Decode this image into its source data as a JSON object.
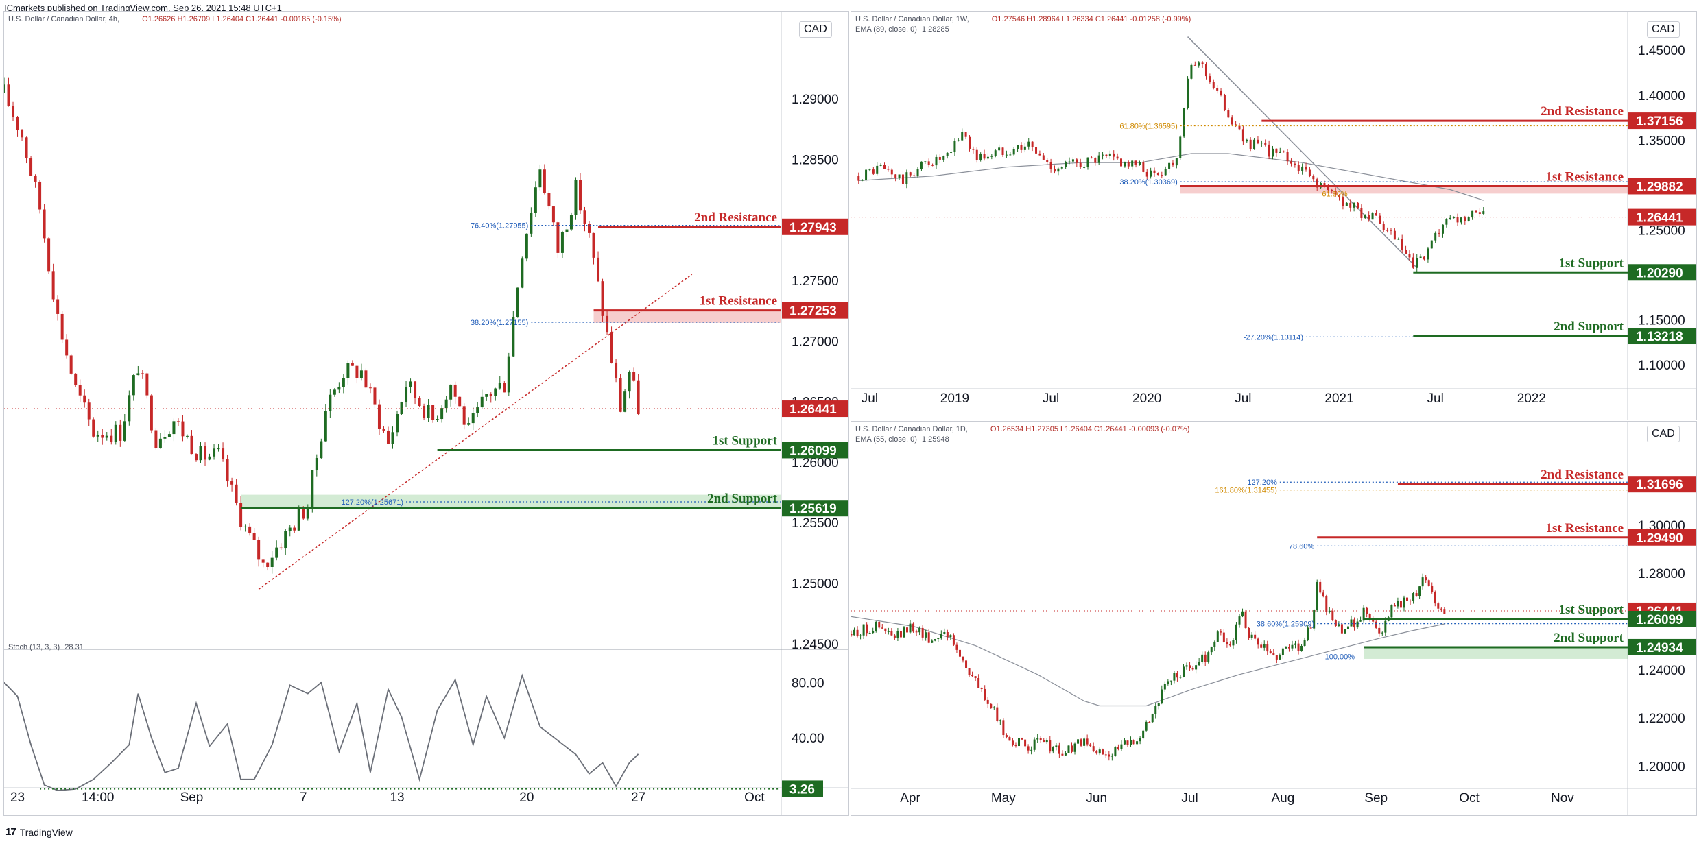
{
  "publisher_line": "ICmarkets published on TradingView.com, Sep 26, 2021 15:48 UTC+1",
  "footer": {
    "logo": "17",
    "brand": "TradingView"
  },
  "colors": {
    "red": "#c62828",
    "green": "#1e6b22",
    "blue": "#1e5bb8",
    "orange": "#d08a00",
    "gray": "#8a8f99"
  },
  "chart_data": [
    {
      "id": "h4",
      "type": "candlestick",
      "symbol": "U.S. Dollar / Canadian Dollar, 4h,",
      "ohlc": "O1.26626  H1.26709  L1.26404  C1.26441  -0.00185 (-0.15%)",
      "currency": "CAD",
      "ylim": [
        1.2455,
        1.2955
      ],
      "yticks": [
        "1.29000",
        "1.28500",
        "1.27500",
        "1.27000",
        "1.26500",
        "1.26000",
        "1.25500",
        "1.25000",
        "1.24500"
      ],
      "ytick_values": [
        1.29,
        1.285,
        1.275,
        1.27,
        1.265,
        1.26,
        1.255,
        1.25,
        1.245
      ],
      "xticks": [
        {
          "label": "23",
          "t": 3
        },
        {
          "label": "14:00",
          "t": 21
        },
        {
          "label": "Sep",
          "t": 42
        },
        {
          "label": "7",
          "t": 67
        },
        {
          "label": "13",
          "t": 88
        },
        {
          "label": "20",
          "t": 117
        },
        {
          "label": "27",
          "t": 142
        },
        {
          "label": "Oct",
          "t": 168
        }
      ],
      "xlim": [
        0,
        174
      ],
      "path": [
        [
          0,
          1.2905
        ],
        [
          4,
          1.287
        ],
        [
          8,
          1.281
        ],
        [
          12,
          1.272
        ],
        [
          16,
          1.266
        ],
        [
          20,
          1.2625
        ],
        [
          26,
          1.2625
        ],
        [
          30,
          1.268
        ],
        [
          34,
          1.262
        ],
        [
          38,
          1.2635
        ],
        [
          44,
          1.2605
        ],
        [
          48,
          1.2605
        ],
        [
          54,
          1.2545
        ],
        [
          58,
          1.2515
        ],
        [
          62,
          1.2535
        ],
        [
          68,
          1.2565
        ],
        [
          72,
          1.2645
        ],
        [
          76,
          1.2675
        ],
        [
          80,
          1.2675
        ],
        [
          86,
          1.2615
        ],
        [
          90,
          1.2665
        ],
        [
          96,
          1.2635
        ],
        [
          100,
          1.2665
        ],
        [
          104,
          1.2625
        ],
        [
          108,
          1.2655
        ],
        [
          112,
          1.2665
        ],
        [
          116,
          1.2775
        ],
        [
          120,
          1.2845
        ],
        [
          124,
          1.2775
        ],
        [
          128,
          1.2825
        ],
        [
          131,
          1.2785
        ],
        [
          134,
          1.2725
        ],
        [
          138,
          1.2645
        ],
        [
          140,
          1.2675
        ],
        [
          142,
          1.2645
        ]
      ],
      "last_price": {
        "label": "1.26441",
        "value": 1.26441
      },
      "levels": [
        {
          "label": "2nd Resistance",
          "price_label": "1.27943",
          "value": 1.27943,
          "kind": "resistance",
          "from": 133
        },
        {
          "label": "1st Resistance",
          "price_label": "1.27253",
          "value": 1.27253,
          "kind": "resistance",
          "from": 132,
          "zone_to": 1.2715
        },
        {
          "label": "1st Support",
          "price_label": "1.26099",
          "value": 1.26099,
          "kind": "support",
          "from": 97
        },
        {
          "label": "2nd Support",
          "price_label": "1.25619",
          "value": 1.25619,
          "kind": "support",
          "from": 53,
          "zone_to": 1.2573
        }
      ],
      "fibs": [
        {
          "label": "76.40%(1.27955)",
          "value": 1.27955,
          "from": 118
        },
        {
          "label": "38.20%(1.27155)",
          "value": 1.27155,
          "from": 118
        },
        {
          "label": "127.20%(1.25671)",
          "value": 1.25671,
          "from": 90
        }
      ],
      "trendline": [
        [
          57,
          1.2495
        ],
        [
          154,
          1.2755
        ]
      ],
      "stoch": {
        "label": "Stoch (13, 3, 3)",
        "value_label": "28.31",
        "level_label": "3.26",
        "level_value": 3.26,
        "ylim": [
          0,
          100
        ],
        "yticks": [
          "80.00",
          "40.00"
        ],
        "ytick_values": [
          80,
          40
        ],
        "values": [
          [
            0,
            80
          ],
          [
            3,
            70
          ],
          [
            6,
            35
          ],
          [
            9,
            6
          ],
          [
            12,
            2
          ],
          [
            16,
            3
          ],
          [
            20,
            10
          ],
          [
            24,
            22
          ],
          [
            28,
            35
          ],
          [
            30,
            72
          ],
          [
            33,
            40
          ],
          [
            36,
            15
          ],
          [
            39,
            18
          ],
          [
            43,
            65
          ],
          [
            46,
            34
          ],
          [
            50,
            50
          ],
          [
            53,
            10
          ],
          [
            56,
            10
          ],
          [
            60,
            35
          ],
          [
            64,
            78
          ],
          [
            68,
            72
          ],
          [
            71,
            80
          ],
          [
            75,
            30
          ],
          [
            79,
            65
          ],
          [
            82,
            15
          ],
          [
            86,
            75
          ],
          [
            89,
            55
          ],
          [
            93,
            10
          ],
          [
            97,
            60
          ],
          [
            101,
            82
          ],
          [
            105,
            35
          ],
          [
            108,
            70
          ],
          [
            112,
            40
          ],
          [
            116,
            85
          ],
          [
            120,
            48
          ],
          [
            124,
            38
          ],
          [
            128,
            28
          ],
          [
            131,
            14
          ],
          [
            134,
            22
          ],
          [
            137,
            5
          ],
          [
            140,
            22
          ],
          [
            142,
            28.31
          ]
        ]
      }
    },
    {
      "id": "w1",
      "type": "candlestick",
      "symbol": "U.S. Dollar / Canadian Dollar, 1W,",
      "ohlc": "O1.27546  H1.28964  L1.26334  C1.26441  -0.01258 (-0.99%)",
      "indicator": "EMA (89, close, 0)",
      "indicator_value": "1.28285",
      "currency": "CAD",
      "ylim": [
        1.075,
        1.47
      ],
      "yticks": [
        "1.45000",
        "1.40000",
        "1.35000",
        "1.30000",
        "1.25000",
        "1.20000",
        "1.15000",
        "1.10000"
      ],
      "ytick_values": [
        1.45,
        1.4,
        1.35,
        1.3,
        1.25,
        1.2,
        1.15,
        1.1
      ],
      "xticks": [
        {
          "label": "Jul",
          "t": 3
        },
        {
          "label": "2019",
          "t": 26
        },
        {
          "label": "Jul",
          "t": 52
        },
        {
          "label": "2020",
          "t": 78
        },
        {
          "label": "Jul",
          "t": 104
        },
        {
          "label": "2021",
          "t": 130
        },
        {
          "label": "Jul",
          "t": 156
        },
        {
          "label": "2022",
          "t": 182
        }
      ],
      "xlim": [
        -2,
        208
      ],
      "path": [
        [
          0,
          1.31
        ],
        [
          6,
          1.32
        ],
        [
          12,
          1.305
        ],
        [
          18,
          1.325
        ],
        [
          24,
          1.33
        ],
        [
          28,
          1.36
        ],
        [
          32,
          1.33
        ],
        [
          40,
          1.34
        ],
        [
          46,
          1.345
        ],
        [
          52,
          1.32
        ],
        [
          60,
          1.325
        ],
        [
          68,
          1.33
        ],
        [
          76,
          1.32
        ],
        [
          80,
          1.31
        ],
        [
          86,
          1.33
        ],
        [
          89,
          1.42
        ],
        [
          92,
          1.44
        ],
        [
          96,
          1.41
        ],
        [
          100,
          1.38
        ],
        [
          104,
          1.35
        ],
        [
          110,
          1.34
        ],
        [
          116,
          1.33
        ],
        [
          122,
          1.31
        ],
        [
          128,
          1.29
        ],
        [
          134,
          1.275
        ],
        [
          140,
          1.26
        ],
        [
          146,
          1.235
        ],
        [
          150,
          1.208
        ],
        [
          154,
          1.225
        ],
        [
          158,
          1.255
        ],
        [
          162,
          1.26
        ],
        [
          166,
          1.265
        ],
        [
          169,
          1.265
        ]
      ],
      "last_price": {
        "label": "1.26441",
        "value": 1.26441
      },
      "levels": [
        {
          "label": "2nd Resistance",
          "price_label": "1.37156",
          "value": 1.37156,
          "kind": "resistance",
          "from": 109
        },
        {
          "label": "1st Resistance",
          "price_label": "1.29882",
          "value": 1.29882,
          "kind": "resistance",
          "from": 87,
          "zone_to": 1.2905
        },
        {
          "label": "1st Support",
          "price_label": "1.20290",
          "value": 1.2029,
          "kind": "support",
          "from": 150
        },
        {
          "label": "2nd Support",
          "price_label": "1.13218",
          "value": 1.13218,
          "kind": "support",
          "from": 150
        }
      ],
      "fibs": [
        {
          "label": "61.80%(1.36595)",
          "value": 1.36595,
          "from": 87,
          "color": "orange"
        },
        {
          "label": "38.20%(1.30369)",
          "value": 1.30369,
          "from": 87
        },
        {
          "label": "-27.20%(1.13114)",
          "value": 1.13114,
          "from": 121
        },
        {
          "label": "61.80%",
          "value": 1.2905,
          "from": 133,
          "color": "orange",
          "no_line": true
        }
      ],
      "ema": [
        [
          0,
          1.305
        ],
        [
          20,
          1.31
        ],
        [
          40,
          1.32
        ],
        [
          60,
          1.325
        ],
        [
          76,
          1.325
        ],
        [
          90,
          1.335
        ],
        [
          100,
          1.335
        ],
        [
          120,
          1.325
        ],
        [
          140,
          1.31
        ],
        [
          160,
          1.295
        ],
        [
          169,
          1.283
        ]
      ],
      "trendline": [
        [
          89,
          1.465
        ],
        [
          151,
          1.208
        ]
      ]
    },
    {
      "id": "d1",
      "type": "candlestick",
      "symbol": "U.S. Dollar / Canadian Dollar, 1D,",
      "ohlc": "O1.26534  H1.27305  L1.26404  C1.26441  -0.00093 (-0.07%)",
      "indicator": "EMA (55, close, 0)",
      "indicator_value": "1.25948",
      "currency": "CAD",
      "ylim": [
        1.195,
        1.3355
      ],
      "yticks": [
        "1.30000",
        "1.28000",
        "1.24000",
        "1.22000",
        "1.20000"
      ],
      "ytick_values": [
        1.3,
        1.28,
        1.24,
        1.22,
        1.2
      ],
      "xticks": [
        {
          "label": "Apr",
          "t": 19
        },
        {
          "label": "May",
          "t": 49
        },
        {
          "label": "Jun",
          "t": 79
        },
        {
          "label": "Jul",
          "t": 109
        },
        {
          "label": "Aug",
          "t": 139
        },
        {
          "label": "Sep",
          "t": 169
        },
        {
          "label": "Oct",
          "t": 199
        },
        {
          "label": "Nov",
          "t": 229
        }
      ],
      "xlim": [
        0,
        250
      ],
      "path": [
        [
          0,
          1.255
        ],
        [
          8,
          1.258
        ],
        [
          14,
          1.253
        ],
        [
          20,
          1.258
        ],
        [
          26,
          1.252
        ],
        [
          30,
          1.257
        ],
        [
          34,
          1.248
        ],
        [
          40,
          1.235
        ],
        [
          46,
          1.222
        ],
        [
          50,
          1.212
        ],
        [
          56,
          1.208
        ],
        [
          62,
          1.21
        ],
        [
          68,
          1.205
        ],
        [
          74,
          1.21
        ],
        [
          80,
          1.205
        ],
        [
          86,
          1.207
        ],
        [
          90,
          1.21
        ],
        [
          94,
          1.215
        ],
        [
          98,
          1.225
        ],
        [
          102,
          1.235
        ],
        [
          108,
          1.24
        ],
        [
          114,
          1.245
        ],
        [
          118,
          1.255
        ],
        [
          122,
          1.25
        ],
        [
          126,
          1.265
        ],
        [
          128,
          1.253
        ],
        [
          132,
          1.25
        ],
        [
          136,
          1.245
        ],
        [
          140,
          1.25
        ],
        [
          144,
          1.25
        ],
        [
          148,
          1.258
        ],
        [
          150,
          1.275
        ],
        [
          154,
          1.262
        ],
        [
          158,
          1.255
        ],
        [
          162,
          1.26
        ],
        [
          166,
          1.265
        ],
        [
          170,
          1.255
        ],
        [
          174,
          1.265
        ],
        [
          178,
          1.268
        ],
        [
          182,
          1.272
        ],
        [
          184,
          1.28
        ],
        [
          186,
          1.275
        ],
        [
          188,
          1.268
        ],
        [
          190,
          1.266
        ],
        [
          191,
          1.264
        ]
      ],
      "last_price": {
        "label": "1.26441",
        "value": 1.26441
      },
      "levels": [
        {
          "label": "2nd Resistance",
          "price_label": "1.31696",
          "value": 1.31696,
          "kind": "resistance",
          "from": 176
        },
        {
          "label": "1st Resistance",
          "price_label": "1.29490",
          "value": 1.2949,
          "kind": "resistance",
          "from": 150
        },
        {
          "label": "1st Support",
          "price_label": "1.26099",
          "value": 1.26099,
          "kind": "support",
          "from": 165
        },
        {
          "label": "2nd Support",
          "price_label": "1.24934",
          "value": 1.24934,
          "kind": "support",
          "from": 165,
          "zone_to": 1.2445
        }
      ],
      "extra_price": {
        "label": "1.26099",
        "value": 1.26099
      },
      "fibs": [
        {
          "label": "127.20%",
          "value": 1.3178,
          "from": 138
        },
        {
          "label": "161.80%(1.31455)",
          "value": 1.31455,
          "from": 138,
          "color": "orange"
        },
        {
          "label": "78.60%",
          "value": 1.2913,
          "from": 150
        },
        {
          "label": "38.60%(1.25909)",
          "value": 1.25909,
          "from": 150
        },
        {
          "label": "100.00%",
          "value": 1.2455,
          "from": 163,
          "no_line": true
        }
      ],
      "ema": [
        [
          0,
          1.262
        ],
        [
          20,
          1.258
        ],
        [
          40,
          1.25
        ],
        [
          60,
          1.238
        ],
        [
          75,
          1.227
        ],
        [
          80,
          1.225
        ],
        [
          95,
          1.225
        ],
        [
          110,
          1.232
        ],
        [
          125,
          1.238
        ],
        [
          140,
          1.243
        ],
        [
          155,
          1.248
        ],
        [
          170,
          1.253
        ],
        [
          180,
          1.256
        ],
        [
          191,
          1.259
        ]
      ]
    }
  ]
}
